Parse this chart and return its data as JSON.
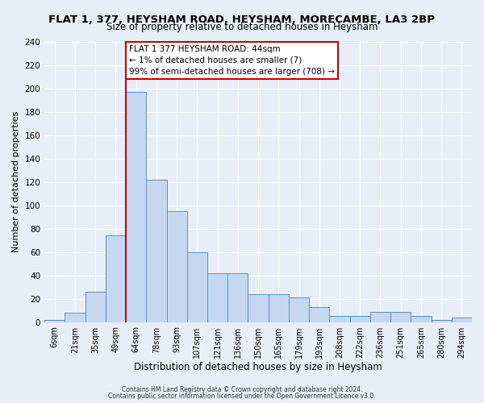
{
  "title": "FLAT 1, 377, HEYSHAM ROAD, HEYSHAM, MORECAMBE, LA3 2BP",
  "subtitle": "Size of property relative to detached houses in Heysham",
  "xlabel": "Distribution of detached houses by size in Heysham",
  "ylabel": "Number of detached properties",
  "bin_labels": [
    "6sqm",
    "21sqm",
    "35sqm",
    "49sqm",
    "64sqm",
    "78sqm",
    "93sqm",
    "107sqm",
    "121sqm",
    "136sqm",
    "150sqm",
    "165sqm",
    "179sqm",
    "193sqm",
    "208sqm",
    "222sqm",
    "236sqm",
    "251sqm",
    "265sqm",
    "280sqm",
    "294sqm"
  ],
  "bar_heights": [
    2,
    8,
    26,
    74,
    197,
    122,
    95,
    60,
    42,
    42,
    24,
    24,
    21,
    13,
    5,
    5,
    9,
    9,
    5,
    2,
    4
  ],
  "bar_color": "#c5d8f0",
  "bar_edge_color": "#5a8fc3",
  "vline_x": 3.5,
  "vline_color": "#cc0000",
  "annotation_text": "FLAT 1 377 HEYSHAM ROAD: 44sqm\n← 1% of detached houses are smaller (7)\n99% of semi-detached houses are larger (708) →",
  "annotation_box_color": "#ffffff",
  "annotation_box_edge_color": "#cc0000",
  "ylim": [
    0,
    240
  ],
  "yticks": [
    0,
    20,
    40,
    60,
    80,
    100,
    120,
    140,
    160,
    180,
    200,
    220,
    240
  ],
  "footer1": "Contains HM Land Registry data © Crown copyright and database right 2024.",
  "footer2": "Contains public sector information licensed under the Open Government Licence v3.0.",
  "background_color": "#e8eef7",
  "plot_bg_color": "#e8eef7",
  "title_fontsize": 9.5,
  "subtitle_fontsize": 8.5,
  "xlabel_fontsize": 8.5,
  "ylabel_fontsize": 8
}
